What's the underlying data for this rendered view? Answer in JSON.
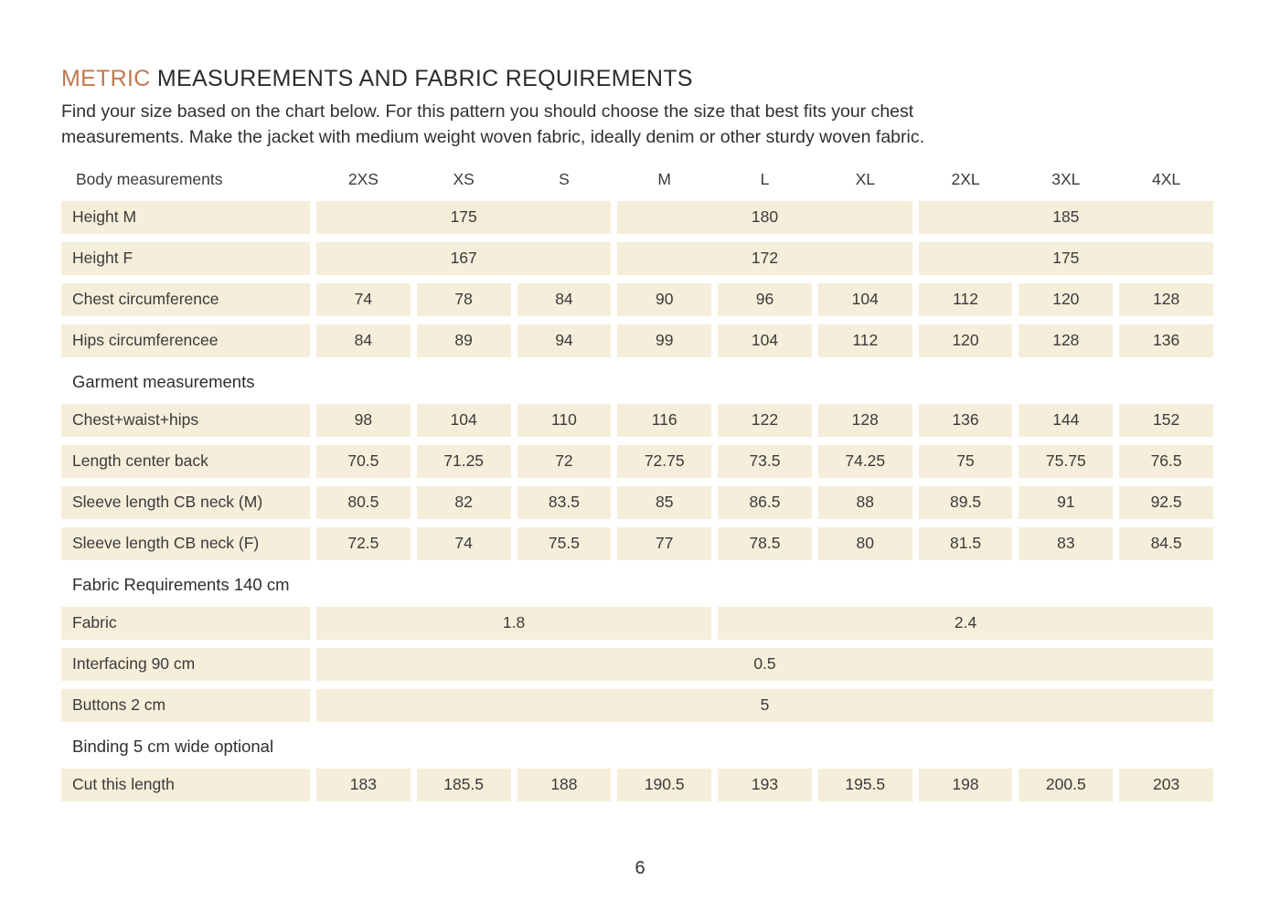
{
  "page": {
    "title": {
      "accent": "METRIC",
      "rest": " MEASUREMENTS AND FABRIC REQUIREMENTS"
    },
    "intro_lines": [
      "Find your size based on the chart below. For this pattern you should choose the size that best fits your chest",
      "measurements. Make the jacket with medium weight woven fabric, ideally denim or other sturdy woven fabric."
    ],
    "page_number": "6"
  },
  "colors": {
    "accent": "#c0794f",
    "cell_background": "#f5eeda",
    "text": "#363636"
  },
  "table": {
    "header_label": "Body measurements",
    "sizes": [
      "2XS",
      "XS",
      "S",
      "M",
      "L",
      "XL",
      "2XL",
      "3XL",
      "4XL"
    ],
    "rows": [
      {
        "type": "data",
        "label": "Height M",
        "cells": [
          {
            "value": "175",
            "span": 3
          },
          {
            "value": "180",
            "span": 3
          },
          {
            "value": "185",
            "span": 3
          }
        ]
      },
      {
        "type": "data",
        "label": "Height F",
        "cells": [
          {
            "value": "167",
            "span": 3
          },
          {
            "value": "172",
            "span": 3
          },
          {
            "value": "175",
            "span": 3
          }
        ]
      },
      {
        "type": "data",
        "label": "Chest circumference",
        "cells": [
          {
            "value": "74",
            "span": 1
          },
          {
            "value": "78",
            "span": 1
          },
          {
            "value": "84",
            "span": 1
          },
          {
            "value": "90",
            "span": 1
          },
          {
            "value": "96",
            "span": 1
          },
          {
            "value": "104",
            "span": 1
          },
          {
            "value": "112",
            "span": 1
          },
          {
            "value": "120",
            "span": 1
          },
          {
            "value": "128",
            "span": 1
          }
        ]
      },
      {
        "type": "data",
        "label": "Hips circumferencee",
        "cells": [
          {
            "value": "84",
            "span": 1
          },
          {
            "value": "89",
            "span": 1
          },
          {
            "value": "94",
            "span": 1
          },
          {
            "value": "99",
            "span": 1
          },
          {
            "value": "104",
            "span": 1
          },
          {
            "value": "112",
            "span": 1
          },
          {
            "value": "120",
            "span": 1
          },
          {
            "value": "128",
            "span": 1
          },
          {
            "value": "136",
            "span": 1
          }
        ]
      },
      {
        "type": "section",
        "label": "Garment measurements"
      },
      {
        "type": "data",
        "label": "Chest+waist+hips",
        "cells": [
          {
            "value": "98",
            "span": 1
          },
          {
            "value": "104",
            "span": 1
          },
          {
            "value": "110",
            "span": 1
          },
          {
            "value": "116",
            "span": 1
          },
          {
            "value": "122",
            "span": 1
          },
          {
            "value": "128",
            "span": 1
          },
          {
            "value": "136",
            "span": 1
          },
          {
            "value": "144",
            "span": 1
          },
          {
            "value": "152",
            "span": 1
          }
        ]
      },
      {
        "type": "data",
        "label": "Length center back",
        "cells": [
          {
            "value": "70.5",
            "span": 1
          },
          {
            "value": "71.25",
            "span": 1
          },
          {
            "value": "72",
            "span": 1
          },
          {
            "value": "72.75",
            "span": 1
          },
          {
            "value": "73.5",
            "span": 1
          },
          {
            "value": "74.25",
            "span": 1
          },
          {
            "value": "75",
            "span": 1
          },
          {
            "value": "75.75",
            "span": 1
          },
          {
            "value": "76.5",
            "span": 1
          }
        ]
      },
      {
        "type": "data",
        "label": "Sleeve length CB neck (M)",
        "cells": [
          {
            "value": "80.5",
            "span": 1
          },
          {
            "value": "82",
            "span": 1
          },
          {
            "value": "83.5",
            "span": 1
          },
          {
            "value": "85",
            "span": 1
          },
          {
            "value": "86.5",
            "span": 1
          },
          {
            "value": "88",
            "span": 1
          },
          {
            "value": "89.5",
            "span": 1
          },
          {
            "value": "91",
            "span": 1
          },
          {
            "value": "92.5",
            "span": 1
          }
        ]
      },
      {
        "type": "data",
        "label": "Sleeve length CB neck (F)",
        "cells": [
          {
            "value": "72.5",
            "span": 1
          },
          {
            "value": "74",
            "span": 1
          },
          {
            "value": "75.5",
            "span": 1
          },
          {
            "value": "77",
            "span": 1
          },
          {
            "value": "78.5",
            "span": 1
          },
          {
            "value": "80",
            "span": 1
          },
          {
            "value": "81.5",
            "span": 1
          },
          {
            "value": "83",
            "span": 1
          },
          {
            "value": "84.5",
            "span": 1
          }
        ]
      },
      {
        "type": "section",
        "label": "Fabric Requirements 140 cm"
      },
      {
        "type": "data",
        "label": "Fabric",
        "cells": [
          {
            "value": "1.8",
            "span": 4
          },
          {
            "value": "2.4",
            "span": 5
          }
        ]
      },
      {
        "type": "data",
        "label": "Interfacing 90 cm",
        "cells": [
          {
            "value": "0.5",
            "span": 9
          }
        ]
      },
      {
        "type": "data",
        "label": "Buttons 2 cm",
        "cells": [
          {
            "value": "5",
            "span": 9
          }
        ]
      },
      {
        "type": "section",
        "label": "Binding 5 cm wide optional"
      },
      {
        "type": "data",
        "label": "Cut this length",
        "cells": [
          {
            "value": "183",
            "span": 1
          },
          {
            "value": "185.5",
            "span": 1
          },
          {
            "value": "188",
            "span": 1
          },
          {
            "value": "190.5",
            "span": 1
          },
          {
            "value": "193",
            "span": 1
          },
          {
            "value": "195.5",
            "span": 1
          },
          {
            "value": "198",
            "span": 1
          },
          {
            "value": "200.5",
            "span": 1
          },
          {
            "value": "203",
            "span": 1
          }
        ]
      }
    ]
  }
}
